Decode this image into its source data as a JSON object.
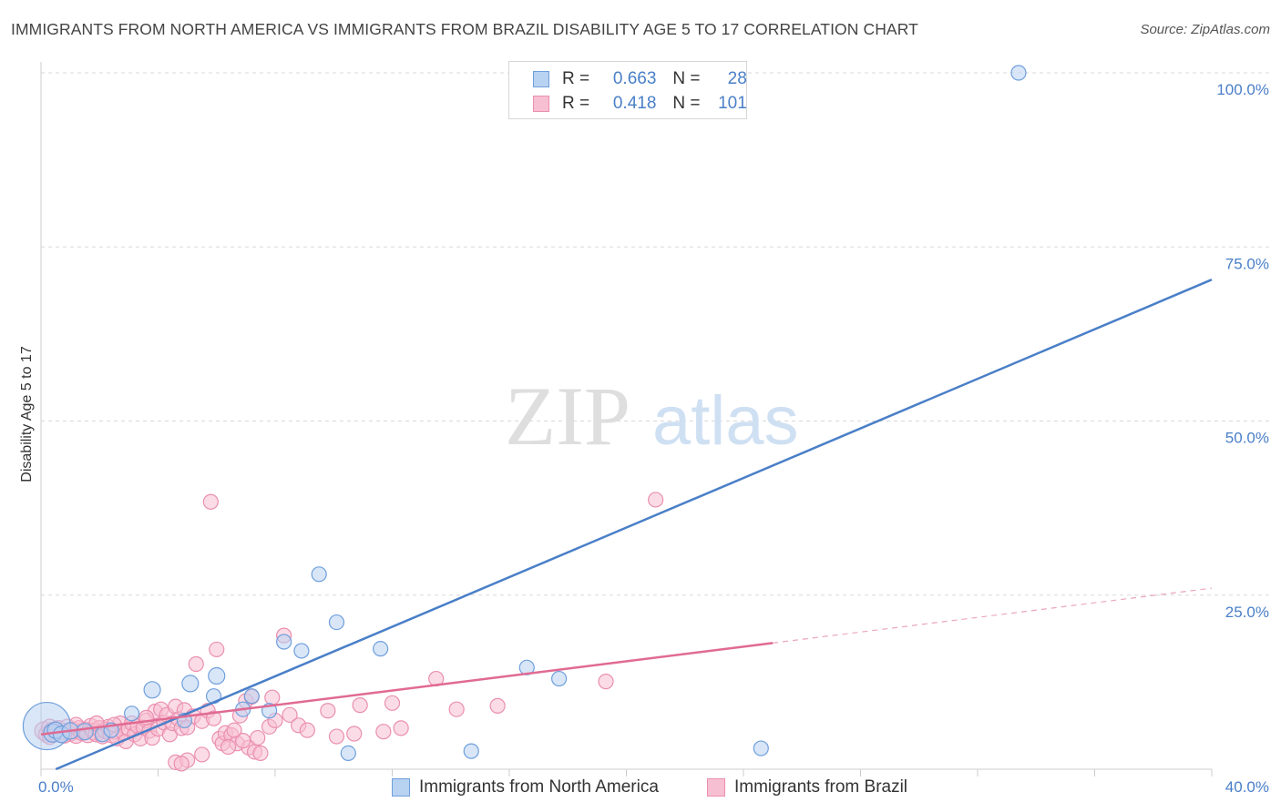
{
  "title": "IMMIGRANTS FROM NORTH AMERICA VS IMMIGRANTS FROM BRAZIL DISABILITY AGE 5 TO 17 CORRELATION CHART",
  "source": "Source: ZipAtlas.com",
  "watermark": {
    "zip": "ZIP",
    "atlas": "atlas"
  },
  "colors": {
    "blue": "#4a7fc8",
    "blue_fill": "#b8d2f2",
    "blue_stroke": "#6f9fdc",
    "pink": "#e06a92",
    "pink_fill": "#f7bfd2",
    "pink_stroke": "#ea8fb0",
    "grid": "#d9d9d9"
  },
  "legend": {
    "r_label": "R =",
    "n_label": "N =",
    "rows": [
      {
        "r": "0.663",
        "n": "28"
      },
      {
        "r": "0.418",
        "n": "101"
      }
    ]
  },
  "chart_data": {
    "type": "scatter",
    "title": "IMMIGRANTS FROM NORTH AMERICA VS IMMIGRANTS FROM BRAZIL DISABILITY AGE 5 TO 17 CORRELATION CHART",
    "ylabel": "Disability Age 5 to 17",
    "xlabel": "",
    "xlim": [
      0,
      40
    ],
    "ylim": [
      0,
      100
    ],
    "x_tick_labels": [
      "0.0%",
      "40.0%"
    ],
    "y_ticks": [
      25,
      50,
      75,
      100
    ],
    "y_tick_labels": [
      "25.0%",
      "50.0%",
      "75.0%",
      "100.0%"
    ],
    "series": [
      {
        "name": "Immigrants from North America",
        "color": "#4a7fc8",
        "r": 0.663,
        "n": 28,
        "trend": {
          "x": [
            0,
            40
          ],
          "y": [
            -0.9,
            70.3
          ],
          "dashed_from": null
        },
        "points": [
          [
            0.2,
            6.2,
            26
          ],
          [
            0.4,
            5.2,
            10
          ],
          [
            0.5,
            5.6,
            9
          ],
          [
            0.7,
            5.0,
            9
          ],
          [
            1.0,
            5.5,
            9
          ],
          [
            1.5,
            5.4,
            9
          ],
          [
            2.1,
            5.0,
            8
          ],
          [
            2.4,
            5.6,
            8
          ],
          [
            3.1,
            8.0,
            8
          ],
          [
            3.8,
            11.4,
            9
          ],
          [
            4.9,
            7.0,
            8
          ],
          [
            5.1,
            12.3,
            9
          ],
          [
            5.9,
            10.5,
            8
          ],
          [
            6.0,
            13.4,
            9
          ],
          [
            6.9,
            8.6,
            8
          ],
          [
            7.2,
            10.5,
            8
          ],
          [
            7.8,
            8.4,
            8
          ],
          [
            8.3,
            18.3,
            8
          ],
          [
            8.9,
            17.0,
            8
          ],
          [
            9.5,
            28.0,
            8
          ],
          [
            10.1,
            21.1,
            8
          ],
          [
            10.5,
            2.3,
            8
          ],
          [
            11.6,
            17.3,
            8
          ],
          [
            14.7,
            2.6,
            8
          ],
          [
            16.6,
            14.6,
            8
          ],
          [
            17.7,
            13.0,
            8
          ],
          [
            24.6,
            3.0,
            8
          ],
          [
            33.4,
            100.0,
            8
          ]
        ]
      },
      {
        "name": "Immigrants from Brazil",
        "color": "#e06a92",
        "r": 0.418,
        "n": 101,
        "trend": {
          "x": [
            0,
            40
          ],
          "y": [
            5.0,
            26.0
          ],
          "dashed_from": 25.0
        },
        "points": [
          [
            0.1,
            5.5,
            10
          ],
          [
            0.2,
            5.0,
            9
          ],
          [
            0.3,
            6.0,
            9
          ],
          [
            0.4,
            5.4,
            10
          ],
          [
            0.5,
            5.2,
            9
          ],
          [
            0.6,
            5.8,
            9
          ],
          [
            0.7,
            5.0,
            9
          ],
          [
            0.8,
            5.4,
            9
          ],
          [
            0.9,
            6.0,
            9
          ],
          [
            1.0,
            5.2,
            9
          ],
          [
            1.1,
            5.6,
            9
          ],
          [
            1.2,
            4.9,
            9
          ],
          [
            1.3,
            5.8,
            9
          ],
          [
            1.4,
            5.3,
            9
          ],
          [
            1.5,
            5.6,
            9
          ],
          [
            1.6,
            5.0,
            9
          ],
          [
            1.7,
            6.1,
            9
          ],
          [
            1.8,
            5.4,
            9
          ],
          [
            1.9,
            5.1,
            9
          ],
          [
            2.0,
            5.8,
            9
          ],
          [
            2.1,
            4.7,
            8
          ],
          [
            2.2,
            5.6,
            9
          ],
          [
            2.3,
            6.1,
            8
          ],
          [
            2.4,
            5.0,
            9
          ],
          [
            2.5,
            5.4,
            8
          ],
          [
            2.6,
            4.4,
            8
          ],
          [
            2.7,
            6.6,
            8
          ],
          [
            2.8,
            5.3,
            8
          ],
          [
            2.9,
            4.0,
            8
          ],
          [
            3.0,
            5.8,
            8
          ],
          [
            3.1,
            6.6,
            8
          ],
          [
            3.2,
            5.0,
            8
          ],
          [
            3.3,
            6.2,
            8
          ],
          [
            3.4,
            4.4,
            8
          ],
          [
            3.5,
            6.0,
            8
          ],
          [
            3.6,
            7.0,
            8
          ],
          [
            3.7,
            5.5,
            8
          ],
          [
            3.8,
            4.5,
            8
          ],
          [
            3.9,
            8.3,
            8
          ],
          [
            4.0,
            5.8,
            8
          ],
          [
            4.1,
            8.6,
            8
          ],
          [
            4.2,
            6.7,
            8
          ],
          [
            4.3,
            7.8,
            8
          ],
          [
            4.4,
            5.0,
            8
          ],
          [
            4.5,
            6.6,
            8
          ],
          [
            4.6,
            9.0,
            8
          ],
          [
            4.7,
            7.2,
            8
          ],
          [
            4.8,
            5.9,
            8
          ],
          [
            4.9,
            8.5,
            8
          ],
          [
            5.0,
            6.0,
            8
          ],
          [
            5.2,
            7.6,
            8
          ],
          [
            5.3,
            15.1,
            8
          ],
          [
            5.5,
            6.9,
            8
          ],
          [
            5.7,
            8.4,
            8
          ],
          [
            5.8,
            38.4,
            8
          ],
          [
            6.0,
            17.2,
            8
          ],
          [
            6.1,
            4.4,
            8
          ],
          [
            6.2,
            3.7,
            8
          ],
          [
            6.3,
            5.2,
            8
          ],
          [
            6.5,
            4.9,
            8
          ],
          [
            6.7,
            3.7,
            8
          ],
          [
            6.8,
            7.7,
            8
          ],
          [
            7.0,
            9.8,
            8
          ],
          [
            7.1,
            3.1,
            8
          ],
          [
            7.2,
            10.4,
            8
          ],
          [
            7.3,
            2.5,
            8
          ],
          [
            7.4,
            4.5,
            8
          ],
          [
            7.5,
            2.3,
            8
          ],
          [
            7.8,
            6.1,
            8
          ],
          [
            7.9,
            10.3,
            8
          ],
          [
            8.0,
            7.0,
            8
          ],
          [
            8.3,
            19.2,
            8
          ],
          [
            8.5,
            7.8,
            8
          ],
          [
            8.8,
            6.3,
            8
          ],
          [
            9.1,
            5.6,
            8
          ],
          [
            9.8,
            8.4,
            8
          ],
          [
            10.1,
            4.7,
            8
          ],
          [
            10.7,
            5.1,
            8
          ],
          [
            10.9,
            9.2,
            8
          ],
          [
            11.7,
            5.4,
            8
          ],
          [
            12.0,
            9.5,
            8
          ],
          [
            12.3,
            5.9,
            8
          ],
          [
            13.5,
            13.0,
            8
          ],
          [
            14.2,
            8.6,
            8
          ],
          [
            15.6,
            9.1,
            8
          ],
          [
            19.3,
            12.6,
            8
          ],
          [
            21.0,
            38.7,
            8
          ],
          [
            4.6,
            1.0,
            8
          ],
          [
            5.0,
            1.3,
            8
          ],
          [
            4.8,
            0.8,
            8
          ],
          [
            5.5,
            2.1,
            8
          ],
          [
            6.4,
            3.2,
            8
          ],
          [
            6.9,
            4.1,
            8
          ],
          [
            3.6,
            7.4,
            8
          ],
          [
            2.5,
            6.4,
            8
          ],
          [
            1.9,
            6.6,
            8
          ],
          [
            1.2,
            6.4,
            8
          ],
          [
            0.8,
            4.8,
            8
          ],
          [
            0.3,
            4.6,
            8
          ],
          [
            5.9,
            7.3,
            8
          ],
          [
            6.6,
            5.6,
            8
          ]
        ]
      }
    ]
  }
}
